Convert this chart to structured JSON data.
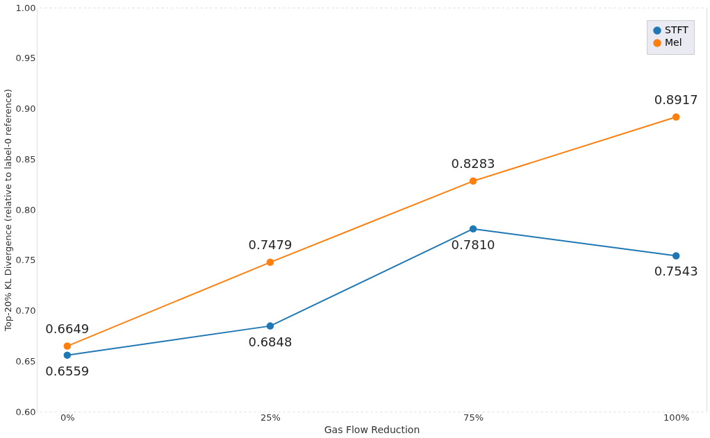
{
  "chart_data": {
    "type": "line",
    "xlabel": "Gas Flow Reduction",
    "ylabel": "Top-20% KL Divergence (relative to label-0 reference)",
    "categories": [
      "0%",
      "25%",
      "75%",
      "100%"
    ],
    "series": [
      {
        "name": "STFT",
        "color": "#1f77b4",
        "values": [
          0.6559,
          0.6848,
          0.781,
          0.7543
        ],
        "value_labels": [
          "0.6559",
          "0.6848",
          "0.7810",
          "0.7543"
        ]
      },
      {
        "name": "Mel",
        "color": "#ff7f0e",
        "values": [
          0.6649,
          0.7479,
          0.8283,
          0.8917
        ],
        "value_labels": [
          "0.6649",
          "0.7479",
          "0.8283",
          "0.8917"
        ]
      }
    ],
    "ylim": [
      0.6,
      1.0
    ],
    "yticks": [
      {
        "value": 0.6,
        "label": "0.60"
      },
      0.65,
      {
        "value": 0.7,
        "label": "0.70"
      },
      0.75,
      {
        "value": 0.8,
        "label": "0.80"
      },
      0.85,
      {
        "value": 0.9,
        "label": "0.90"
      },
      0.95,
      {
        "value": 1.0,
        "label": "1.00"
      }
    ],
    "grid": true,
    "legend": "top right",
    "marker": "circle",
    "line_style": "solid"
  }
}
